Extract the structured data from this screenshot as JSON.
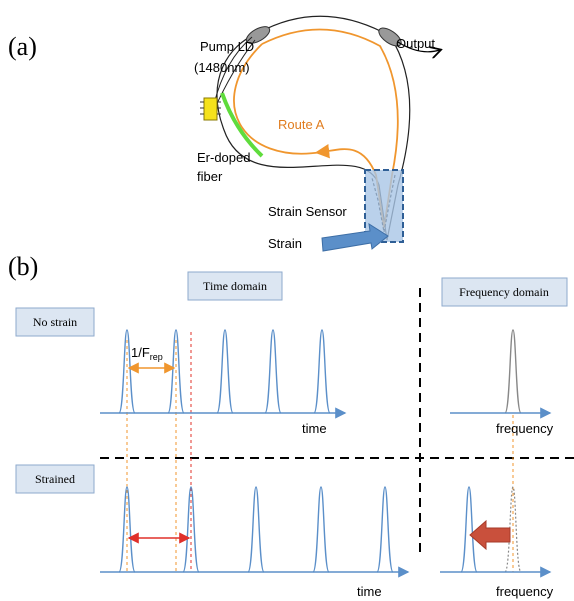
{
  "panel_a": {
    "label": "(a)",
    "pump_ld": "Pump LD",
    "pump_wavelength": "(1480nm)",
    "output": "Output",
    "route": "Route A",
    "fiber_line1": "Er-doped",
    "fiber_line2": "fiber",
    "sensor": "Strain Sensor",
    "strain": "Strain"
  },
  "panel_b": {
    "label": "(b)",
    "time_domain": "Time domain",
    "frequency_domain": "Frequency domain",
    "no_strain": "No strain",
    "strained": "Strained",
    "period_label": "1/F",
    "period_subscript": "rep",
    "time_axis_top": "time",
    "frequency_axis_top": "frequency",
    "time_axis_bottom": "time",
    "frequency_axis_bottom": "frequency"
  }
}
